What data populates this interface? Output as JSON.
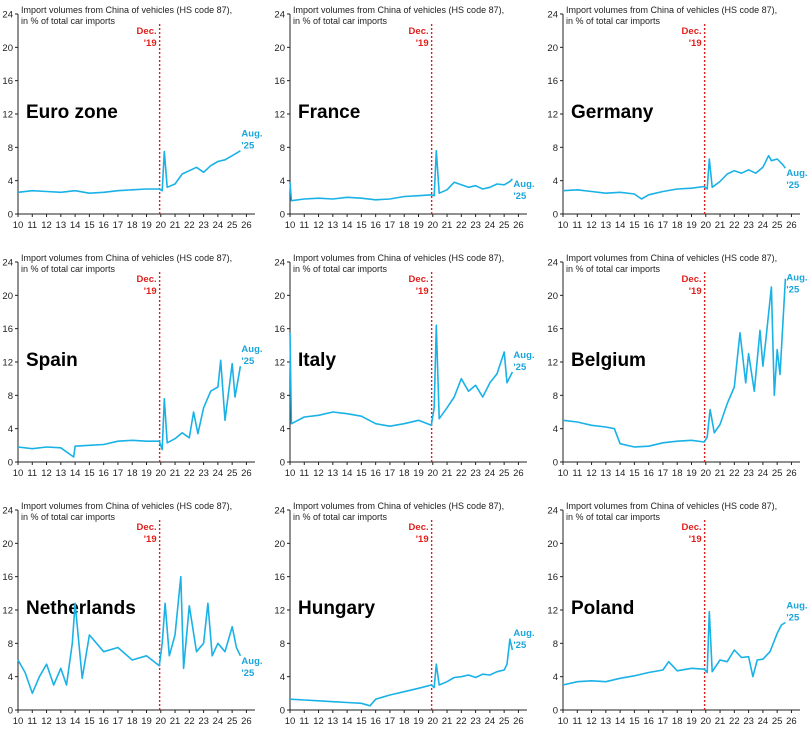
{
  "chart_data": [
    {
      "type": "line",
      "title": "Euro zone",
      "subtitle": "Import volumes from China of vehicles (HS code 87),\nin % of total car imports",
      "ylim": [
        0,
        24
      ],
      "yticks": [
        0,
        4,
        8,
        12,
        16,
        20,
        24
      ],
      "xticks": [
        "10",
        "11",
        "12",
        "13",
        "14",
        "15",
        "16",
        "17",
        "18",
        "19",
        "20",
        "21",
        "22",
        "23",
        "24",
        "25",
        "26"
      ],
      "marker_label": "Dec.\n'19",
      "marker_x": 2019.92,
      "end_label": "Aug.\n'25",
      "series": [
        {
          "x": [
            2010.0,
            2011.0,
            2012.0,
            2013.0,
            2014.0,
            2015.0,
            2016.0,
            2017.0,
            2018.0,
            2019.0,
            2019.9,
            2020.1,
            2020.25,
            2020.45,
            2021.0,
            2021.5,
            2022.0,
            2022.5,
            2023.0,
            2023.5,
            2024.0,
            2024.5,
            2025.0,
            2025.4,
            2025.58
          ],
          "values": [
            2.6,
            2.8,
            2.7,
            2.6,
            2.8,
            2.5,
            2.6,
            2.8,
            2.9,
            3.0,
            3.0,
            2.8,
            7.5,
            3.2,
            3.6,
            4.8,
            5.2,
            5.6,
            5.0,
            5.8,
            6.3,
            6.5,
            7.0,
            7.4,
            7.6
          ]
        }
      ]
    },
    {
      "type": "line",
      "title": "France",
      "subtitle": "Import volumes from China of vehicles (HS code 87),\nin % of total car imports",
      "ylim": [
        0,
        24
      ],
      "yticks": [
        0,
        4,
        8,
        12,
        16,
        20,
        24
      ],
      "xticks": [
        "10",
        "11",
        "12",
        "13",
        "14",
        "15",
        "16",
        "17",
        "18",
        "19",
        "20",
        "21",
        "22",
        "23",
        "24",
        "25",
        "26"
      ],
      "marker_label": "Dec.\n'19",
      "marker_x": 2019.92,
      "end_label": "Aug.\n'25",
      "series": [
        {
          "x": [
            2010.0,
            2010.1,
            2011.0,
            2012.0,
            2013.0,
            2014.0,
            2015.0,
            2016.0,
            2017.0,
            2018.0,
            2019.0,
            2019.9,
            2020.1,
            2020.25,
            2020.45,
            2021.0,
            2021.5,
            2022.0,
            2022.5,
            2023.0,
            2023.5,
            2024.0,
            2024.5,
            2025.0,
            2025.4,
            2025.58
          ],
          "values": [
            3.8,
            1.6,
            1.8,
            1.9,
            1.8,
            2.0,
            1.9,
            1.7,
            1.8,
            2.1,
            2.2,
            2.3,
            2.2,
            7.6,
            2.5,
            2.9,
            3.8,
            3.5,
            3.2,
            3.4,
            3.0,
            3.2,
            3.6,
            3.5,
            3.9,
            4.2
          ]
        }
      ]
    },
    {
      "type": "line",
      "title": "Germany",
      "subtitle": "Import volumes from China of vehicles (HS code 87),\nin % of total car imports",
      "ylim": [
        0,
        24
      ],
      "yticks": [
        0,
        4,
        8,
        12,
        16,
        20,
        24
      ],
      "xticks": [
        "10",
        "11",
        "12",
        "13",
        "14",
        "15",
        "16",
        "17",
        "18",
        "19",
        "20",
        "21",
        "22",
        "23",
        "24",
        "25",
        "26"
      ],
      "marker_label": "Dec.\n'19",
      "marker_x": 2019.92,
      "end_label": "Aug.\n'25",
      "series": [
        {
          "x": [
            2010.0,
            2011.0,
            2012.0,
            2013.0,
            2014.0,
            2015.0,
            2015.5,
            2016.0,
            2017.0,
            2018.0,
            2019.0,
            2019.9,
            2020.1,
            2020.25,
            2020.45,
            2021.0,
            2021.5,
            2022.0,
            2022.5,
            2023.0,
            2023.5,
            2024.0,
            2024.4,
            2024.6,
            2025.0,
            2025.4,
            2025.58
          ],
          "values": [
            2.8,
            2.9,
            2.7,
            2.5,
            2.6,
            2.4,
            1.8,
            2.3,
            2.7,
            3.0,
            3.1,
            3.3,
            3.0,
            6.6,
            3.2,
            3.9,
            4.8,
            5.2,
            4.9,
            5.3,
            4.9,
            5.6,
            7.0,
            6.4,
            6.6,
            5.9,
            5.5
          ]
        }
      ]
    },
    {
      "type": "line",
      "title": "Spain",
      "subtitle": "Import volumes from China of vehicles (HS code 87),\nin % of total car imports",
      "ylim": [
        0,
        24
      ],
      "yticks": [
        0,
        4,
        8,
        12,
        16,
        20,
        24
      ],
      "xticks": [
        "10",
        "11",
        "12",
        "13",
        "14",
        "15",
        "16",
        "17",
        "18",
        "19",
        "20",
        "21",
        "22",
        "23",
        "24",
        "25",
        "26"
      ],
      "marker_label": "Dec.\n'19",
      "marker_x": 2019.92,
      "end_label": "Aug.\n'25",
      "series": [
        {
          "x": [
            2010.0,
            2011.0,
            2012.0,
            2013.0,
            2013.9,
            2014.0,
            2015.0,
            2016.0,
            2017.0,
            2018.0,
            2019.0,
            2019.9,
            2020.1,
            2020.25,
            2020.45,
            2021.0,
            2021.5,
            2022.0,
            2022.3,
            2022.6,
            2023.0,
            2023.5,
            2024.0,
            2024.2,
            2024.5,
            2025.0,
            2025.2,
            2025.58
          ],
          "values": [
            1.8,
            1.6,
            1.8,
            1.7,
            0.6,
            1.9,
            2.0,
            2.1,
            2.5,
            2.6,
            2.5,
            2.5,
            1.5,
            7.6,
            2.3,
            2.8,
            3.5,
            2.9,
            6.0,
            3.4,
            6.5,
            8.5,
            9.0,
            12.2,
            5.0,
            11.8,
            7.8,
            11.5
          ]
        }
      ]
    },
    {
      "type": "line",
      "title": "Italy",
      "subtitle": "Import volumes from China of vehicles (HS code 87),\nin % of total car imports",
      "ylim": [
        0,
        24
      ],
      "yticks": [
        0,
        4,
        8,
        12,
        16,
        20,
        24
      ],
      "xticks": [
        "10",
        "11",
        "12",
        "13",
        "14",
        "15",
        "16",
        "17",
        "18",
        "19",
        "20",
        "21",
        "22",
        "23",
        "24",
        "25",
        "26"
      ],
      "marker_label": "Dec.\n'19",
      "marker_x": 2019.92,
      "end_label": "Aug.\n'25",
      "series": [
        {
          "x": [
            2010.0,
            2010.1,
            2011.0,
            2012.0,
            2013.0,
            2014.0,
            2015.0,
            2016.0,
            2017.0,
            2018.0,
            2019.0,
            2019.9,
            2020.1,
            2020.25,
            2020.45,
            2021.0,
            2021.5,
            2022.0,
            2022.5,
            2023.0,
            2023.5,
            2024.0,
            2024.5,
            2025.0,
            2025.2,
            2025.58
          ],
          "values": [
            15.5,
            4.6,
            5.4,
            5.6,
            6.0,
            5.8,
            5.5,
            4.6,
            4.3,
            4.6,
            5.0,
            4.4,
            6.5,
            16.4,
            5.2,
            6.5,
            7.8,
            10.0,
            8.5,
            9.2,
            7.8,
            9.5,
            10.6,
            13.2,
            9.5,
            10.8
          ]
        }
      ]
    },
    {
      "type": "line",
      "title": "Belgium",
      "subtitle": "Import volumes from China of vehicles (HS code 87),\nin % of total car imports",
      "ylim": [
        0,
        24
      ],
      "yticks": [
        0,
        4,
        8,
        12,
        16,
        20,
        24
      ],
      "xticks": [
        "10",
        "11",
        "12",
        "13",
        "14",
        "15",
        "16",
        "17",
        "18",
        "19",
        "20",
        "21",
        "22",
        "23",
        "24",
        "25",
        "26"
      ],
      "marker_label": "Dec.\n'19",
      "marker_x": 2019.92,
      "end_label": "Aug.\n'25",
      "series": [
        {
          "x": [
            2010.0,
            2011.0,
            2012.0,
            2013.0,
            2013.6,
            2014.0,
            2015.0,
            2016.0,
            2017.0,
            2018.0,
            2019.0,
            2019.9,
            2020.1,
            2020.3,
            2020.6,
            2021.0,
            2021.5,
            2022.0,
            2022.4,
            2022.8,
            2023.0,
            2023.4,
            2023.8,
            2024.0,
            2024.2,
            2024.6,
            2024.8,
            2025.0,
            2025.2,
            2025.58
          ],
          "values": [
            5.0,
            4.8,
            4.4,
            4.2,
            4.0,
            2.2,
            1.8,
            1.9,
            2.3,
            2.5,
            2.6,
            2.4,
            3.0,
            6.3,
            3.5,
            4.5,
            7.0,
            9.0,
            15.5,
            9.5,
            13.0,
            8.5,
            15.8,
            11.5,
            14.5,
            21.0,
            8.0,
            13.5,
            10.5,
            22.0
          ]
        }
      ]
    },
    {
      "type": "line",
      "title": "Netherlands",
      "subtitle": "Import volumes from China of vehicles (HS code 87),\nin % of total car imports",
      "ylim": [
        0,
        24
      ],
      "yticks": [
        0,
        4,
        8,
        12,
        16,
        20,
        24
      ],
      "xticks": [
        "10",
        "11",
        "12",
        "13",
        "14",
        "15",
        "16",
        "17",
        "18",
        "19",
        "20",
        "21",
        "22",
        "23",
        "24",
        "25",
        "26"
      ],
      "marker_label": "Dec.\n'19",
      "marker_x": 2019.92,
      "end_label": "Aug.\n'25",
      "series": [
        {
          "x": [
            2010.0,
            2010.5,
            2011.0,
            2011.5,
            2012.0,
            2012.5,
            2013.0,
            2013.4,
            2013.8,
            2014.0,
            2014.5,
            2015.0,
            2016.0,
            2017.0,
            2018.0,
            2019.0,
            2019.9,
            2020.1,
            2020.3,
            2020.6,
            2021.0,
            2021.4,
            2021.6,
            2022.0,
            2022.5,
            2023.0,
            2023.3,
            2023.6,
            2024.0,
            2024.5,
            2025.0,
            2025.3,
            2025.58
          ],
          "values": [
            6.0,
            4.5,
            2.0,
            4.0,
            5.5,
            3.0,
            5.0,
            3.0,
            8.0,
            12.8,
            3.8,
            9.0,
            7.0,
            7.5,
            6.0,
            6.5,
            5.3,
            8.0,
            12.8,
            6.5,
            9.0,
            16.0,
            5.0,
            12.5,
            7.0,
            8.0,
            12.8,
            6.5,
            8.0,
            7.0,
            10.0,
            7.5,
            6.5
          ]
        }
      ]
    },
    {
      "type": "line",
      "title": "Hungary",
      "subtitle": "Import volumes from China of vehicles (HS code 87),\nin % of total car imports",
      "ylim": [
        0,
        24
      ],
      "yticks": [
        0,
        4,
        8,
        12,
        16,
        20,
        24
      ],
      "xticks": [
        "10",
        "11",
        "12",
        "13",
        "14",
        "15",
        "16",
        "17",
        "18",
        "19",
        "20",
        "21",
        "22",
        "23",
        "24",
        "25",
        "26"
      ],
      "marker_label": "Dec.\n'19",
      "marker_x": 2019.92,
      "end_label": "Aug.\n'25",
      "series": [
        {
          "x": [
            2010.0,
            2011.0,
            2012.0,
            2013.0,
            2014.0,
            2015.0,
            2015.6,
            2016.0,
            2017.0,
            2018.0,
            2019.0,
            2019.9,
            2020.1,
            2020.25,
            2020.45,
            2021.0,
            2021.5,
            2022.0,
            2022.5,
            2023.0,
            2023.5,
            2024.0,
            2024.5,
            2025.0,
            2025.2,
            2025.4,
            2025.58
          ],
          "values": [
            1.3,
            1.2,
            1.1,
            1.0,
            0.9,
            0.8,
            0.5,
            1.3,
            1.8,
            2.2,
            2.6,
            3.0,
            2.7,
            5.5,
            3.0,
            3.4,
            3.9,
            4.0,
            4.2,
            3.9,
            4.3,
            4.2,
            4.6,
            4.8,
            5.5,
            8.5,
            7.2
          ]
        }
      ]
    },
    {
      "type": "line",
      "title": "Poland",
      "subtitle": "Import volumes from China of vehicles (HS code 87),\nin % of total car imports",
      "ylim": [
        0,
        24
      ],
      "yticks": [
        0,
        4,
        8,
        12,
        16,
        20,
        24
      ],
      "xticks": [
        "10",
        "11",
        "12",
        "13",
        "14",
        "15",
        "16",
        "17",
        "18",
        "19",
        "20",
        "21",
        "22",
        "23",
        "24",
        "25",
        "26"
      ],
      "marker_label": "Dec.\n'19",
      "marker_x": 2019.92,
      "end_label": "Aug.\n'25",
      "series": [
        {
          "x": [
            2010.0,
            2011.0,
            2012.0,
            2013.0,
            2014.0,
            2015.0,
            2016.0,
            2017.0,
            2017.4,
            2018.0,
            2019.0,
            2019.9,
            2020.1,
            2020.25,
            2020.45,
            2021.0,
            2021.5,
            2022.0,
            2022.5,
            2023.0,
            2023.3,
            2023.6,
            2024.0,
            2024.5,
            2025.0,
            2025.3,
            2025.58
          ],
          "values": [
            3.0,
            3.4,
            3.5,
            3.4,
            3.8,
            4.1,
            4.5,
            4.8,
            5.8,
            4.7,
            5.0,
            4.9,
            4.5,
            11.8,
            4.6,
            6.0,
            5.8,
            7.2,
            6.3,
            6.4,
            4.0,
            6.0,
            6.1,
            7.0,
            9.2,
            10.2,
            10.5
          ]
        }
      ]
    }
  ]
}
